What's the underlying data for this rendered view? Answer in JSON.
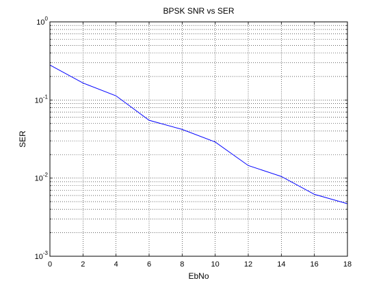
{
  "chart_data": {
    "type": "line",
    "title": "BPSK SNR vs SER",
    "xlabel": "EbNo",
    "ylabel": "SER",
    "xlim": [
      0,
      18
    ],
    "ylim": [
      0.001,
      1
    ],
    "yscale": "log",
    "grid": true,
    "xticks": [
      "0",
      "2",
      "4",
      "6",
      "8",
      "10",
      "12",
      "14",
      "16",
      "18"
    ],
    "yticks": [
      {
        "base": "10",
        "exp": "-3"
      },
      {
        "base": "10",
        "exp": "-2"
      },
      {
        "base": "10",
        "exp": "-1"
      },
      {
        "base": "10",
        "exp": "0"
      }
    ],
    "x": [
      0,
      2,
      4,
      6,
      8,
      10,
      12,
      14,
      16,
      18
    ],
    "series": [
      {
        "color": "#0000ff",
        "values": [
          0.28,
          0.165,
          0.113,
          0.055,
          0.042,
          0.029,
          0.0145,
          0.0105,
          0.0062,
          0.0047
        ]
      }
    ]
  }
}
